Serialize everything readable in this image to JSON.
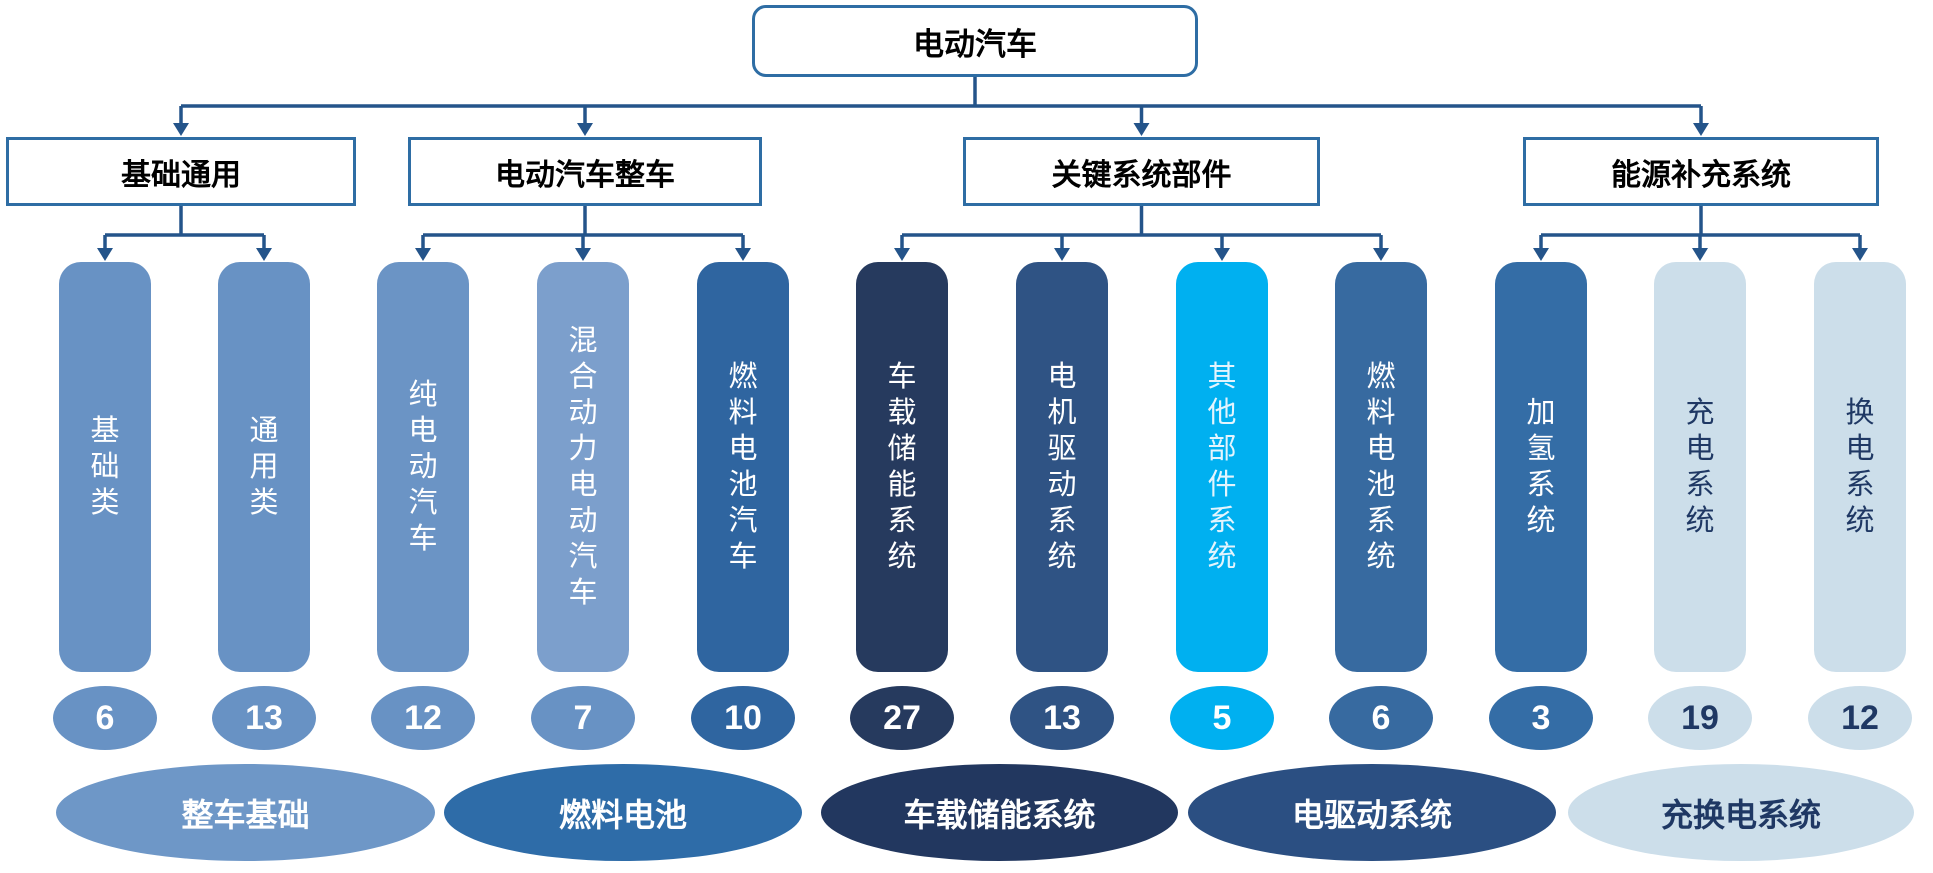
{
  "root": {
    "label": "电动汽车"
  },
  "groups": [
    {
      "label": "基础通用"
    },
    {
      "label": "电动汽车整车"
    },
    {
      "label": "关键系统部件"
    },
    {
      "label": "能源补充系统"
    }
  ],
  "bars": [
    {
      "label": "基础类",
      "count": "6",
      "bg": "#6892C4",
      "fg": "#FFFFFF",
      "count_bg": "#6892C4",
      "count_fg": "#FFFFFF"
    },
    {
      "label": "通用类",
      "count": "13",
      "bg": "#6892C4",
      "fg": "#FFFFFF",
      "count_bg": "#6892C4",
      "count_fg": "#FFFFFF"
    },
    {
      "label": "纯电动汽车",
      "count": "12",
      "bg": "#6B94C5",
      "fg": "#FFFFFF",
      "count_bg": "#6892C4",
      "count_fg": "#FFFFFF"
    },
    {
      "label": "混合动力电动汽车",
      "count": "7",
      "bg": "#7C9FCC",
      "fg": "#FFFFFF",
      "count_bg": "#6892C4",
      "count_fg": "#FFFFFF"
    },
    {
      "label": "燃料电池汽车",
      "count": "10",
      "bg": "#2F65A0",
      "fg": "#FFFFFF",
      "count_bg": "#2F65A0",
      "count_fg": "#FFFFFF"
    },
    {
      "label": "车载储能系统",
      "count": "27",
      "bg": "#263A5E",
      "fg": "#FFFFFF",
      "count_bg": "#263A5E",
      "count_fg": "#FFFFFF"
    },
    {
      "label": "电机驱动系统",
      "count": "13",
      "bg": "#2F5384",
      "fg": "#FFFFFF",
      "count_bg": "#2F5384",
      "count_fg": "#FFFFFF"
    },
    {
      "label": "其他部件系统",
      "count": "5",
      "bg": "#00B0F0",
      "fg": "#E3F4FD",
      "count_bg": "#00B0F0",
      "count_fg": "#FFFFFF"
    },
    {
      "label": "燃料电池系统",
      "count": "6",
      "bg": "#376AA0",
      "fg": "#FFFFFF",
      "count_bg": "#376AA0",
      "count_fg": "#FFFFFF"
    },
    {
      "label": "加氢系统",
      "count": "3",
      "bg": "#346DA6",
      "fg": "#FFFFFF",
      "count_bg": "#346DA6",
      "count_fg": "#FFFFFF"
    },
    {
      "label": "充电系统",
      "count": "19",
      "bg": "#CCDEEA",
      "fg": "#1F3864",
      "count_bg": "#CCDEEA",
      "count_fg": "#1F3864"
    },
    {
      "label": "换电系统",
      "count": "12",
      "bg": "#CCDEEA",
      "fg": "#1F3864",
      "count_bg": "#CCDEEA",
      "count_fg": "#1F3864"
    }
  ],
  "bottom_ellipses": [
    {
      "label": "整车基础",
      "bg": "#6E97C7",
      "fg": "#FFFFFF"
    },
    {
      "label": "燃料电池",
      "bg": "#2E6CA8",
      "fg": "#FFFFFF"
    },
    {
      "label": "车载储能系统",
      "bg": "#22375F",
      "fg": "#FFFFFF"
    },
    {
      "label": "电驱动系统",
      "bg": "#2B4F82",
      "fg": "#FFFFFF"
    },
    {
      "label": "充换电系统",
      "bg": "#CCDEEA",
      "fg": "#1F3864"
    }
  ],
  "colors": {
    "connector": "#24548A",
    "box_border": "#2E6DA4",
    "background": "#FFFFFF"
  }
}
